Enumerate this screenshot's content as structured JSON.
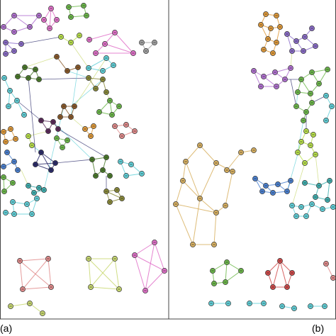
{
  "panels": [
    {
      "id": "a",
      "label": "(a)"
    },
    {
      "id": "b",
      "label": "(b)"
    }
  ],
  "colors": {
    "frame": "#444444",
    "node_stroke": "#333333",
    "purple": "#b070d0",
    "violet": "#8a6cc8",
    "pink": "#e070c8",
    "green": "#6cb84a",
    "darkgreen": "#4a7a2a",
    "lime": "#b8e04a",
    "yellowgreen": "#c8d870",
    "cyan": "#60d0d8",
    "teal": "#40b0b0",
    "orange": "#e09a3a",
    "brown": "#8a5a2a",
    "olive": "#8a8a3a",
    "red": "#d04a4a",
    "salmon": "#e08a8a",
    "tan": "#d8b060",
    "blue": "#4a80d0",
    "navy": "#2a2a6a",
    "gray": "#a0a0a0",
    "darkpurple": "#5a2a5a"
  }
}
